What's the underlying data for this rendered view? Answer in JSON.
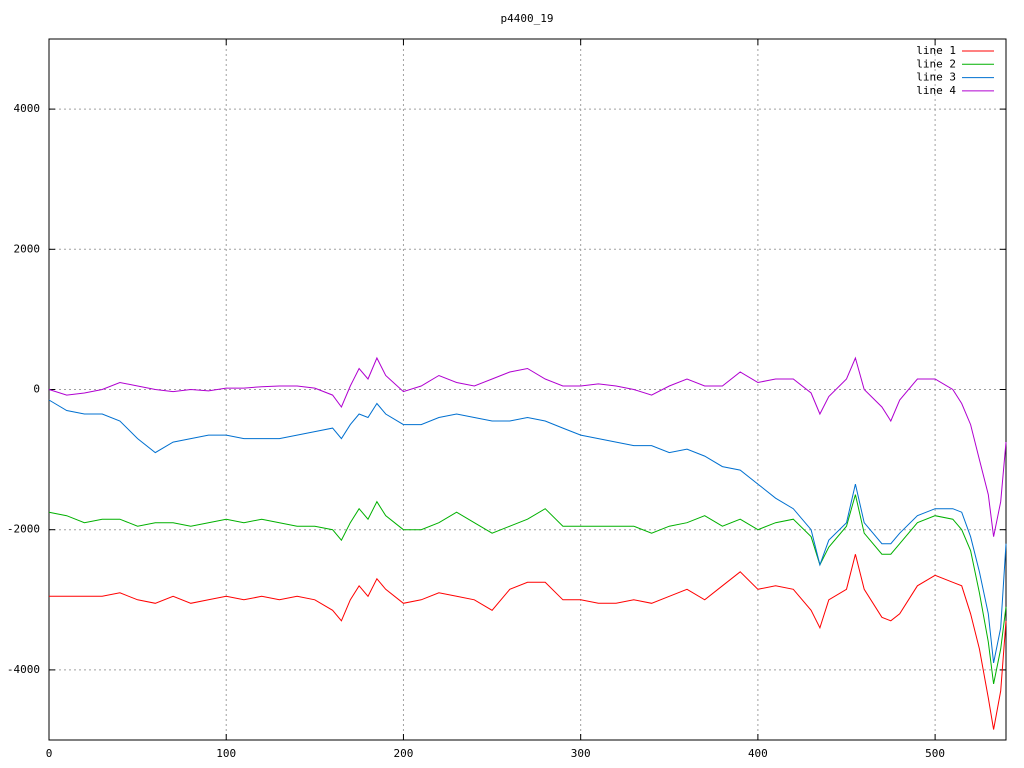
{
  "chart_data": {
    "type": "line",
    "title": "p4400_19",
    "x": [
      0,
      10,
      20,
      30,
      40,
      50,
      60,
      70,
      80,
      90,
      100,
      110,
      120,
      130,
      140,
      150,
      160,
      165,
      170,
      175,
      180,
      185,
      190,
      200,
      210,
      220,
      230,
      240,
      250,
      260,
      270,
      280,
      290,
      300,
      310,
      320,
      330,
      340,
      350,
      360,
      370,
      380,
      390,
      400,
      410,
      420,
      430,
      435,
      440,
      450,
      455,
      460,
      470,
      475,
      480,
      490,
      500,
      510,
      515,
      520,
      525,
      530,
      533,
      537,
      540
    ],
    "series": [
      {
        "name": "line 1",
        "color": "#ff0000",
        "values": [
          -2950,
          -2950,
          -2950,
          -2950,
          -2900,
          -3000,
          -3050,
          -2950,
          -3050,
          -3000,
          -2950,
          -3000,
          -2950,
          -3000,
          -2950,
          -3000,
          -3150,
          -3300,
          -3000,
          -2800,
          -2950,
          -2700,
          -2850,
          -3050,
          -3000,
          -2900,
          -2950,
          -3000,
          -3150,
          -2850,
          -2750,
          -2750,
          -3000,
          -3000,
          -3050,
          -3050,
          -3000,
          -3050,
          -2950,
          -2850,
          -3000,
          -2800,
          -2600,
          -2850,
          -2800,
          -2850,
          -3150,
          -3400,
          -3000,
          -2850,
          -2350,
          -2850,
          -3250,
          -3300,
          -3200,
          -2800,
          -2650,
          -2750,
          -2800,
          -3200,
          -3700,
          -4400,
          -4850,
          -4300,
          -3300
        ]
      },
      {
        "name": "line 2",
        "color": "#00b000",
        "values": [
          -1750,
          -1800,
          -1900,
          -1850,
          -1850,
          -1950,
          -1900,
          -1900,
          -1950,
          -1900,
          -1850,
          -1900,
          -1850,
          -1900,
          -1950,
          -1950,
          -2000,
          -2150,
          -1900,
          -1700,
          -1850,
          -1600,
          -1800,
          -2000,
          -2000,
          -1900,
          -1750,
          -1900,
          -2050,
          -1950,
          -1850,
          -1700,
          -1950,
          -1950,
          -1950,
          -1950,
          -1950,
          -2050,
          -1950,
          -1900,
          -1800,
          -1950,
          -1850,
          -2000,
          -1900,
          -1850,
          -2100,
          -2500,
          -2250,
          -1950,
          -1500,
          -2050,
          -2350,
          -2350,
          -2200,
          -1900,
          -1800,
          -1850,
          -2000,
          -2300,
          -2900,
          -3600,
          -4200,
          -3700,
          -3100
        ]
      },
      {
        "name": "line 3",
        "color": "#0070d0",
        "values": [
          -150,
          -300,
          -350,
          -350,
          -450,
          -700,
          -900,
          -750,
          -700,
          -650,
          -650,
          -700,
          -700,
          -700,
          -650,
          -600,
          -550,
          -700,
          -500,
          -350,
          -400,
          -200,
          -350,
          -500,
          -500,
          -400,
          -350,
          -400,
          -450,
          -450,
          -400,
          -450,
          -550,
          -650,
          -700,
          -750,
          -800,
          -800,
          -900,
          -850,
          -950,
          -1100,
          -1150,
          -1350,
          -1550,
          -1700,
          -2000,
          -2500,
          -2150,
          -1900,
          -1350,
          -1900,
          -2200,
          -2200,
          -2050,
          -1800,
          -1700,
          -1700,
          -1750,
          -2100,
          -2600,
          -3200,
          -3900,
          -3400,
          -2200
        ]
      },
      {
        "name": "line 4",
        "color": "#b000d0",
        "values": [
          0,
          -80,
          -50,
          0,
          100,
          50,
          0,
          -30,
          0,
          -20,
          20,
          20,
          40,
          50,
          50,
          20,
          -80,
          -250,
          50,
          300,
          150,
          450,
          200,
          -30,
          50,
          200,
          100,
          50,
          150,
          250,
          300,
          150,
          50,
          50,
          80,
          50,
          0,
          -80,
          50,
          150,
          50,
          50,
          250,
          100,
          150,
          150,
          -50,
          -350,
          -100,
          150,
          450,
          0,
          -250,
          -450,
          -150,
          150,
          150,
          0,
          -200,
          -500,
          -1000,
          -1500,
          -2100,
          -1600,
          -750
        ]
      }
    ],
    "xlim": [
      0,
      540
    ],
    "ylim": [
      -5000,
      5000
    ],
    "xticks": [
      0,
      100,
      200,
      300,
      400,
      500
    ],
    "yticks": [
      -4000,
      -2000,
      0,
      2000,
      4000
    ],
    "grid": true,
    "legend": "top-right"
  }
}
